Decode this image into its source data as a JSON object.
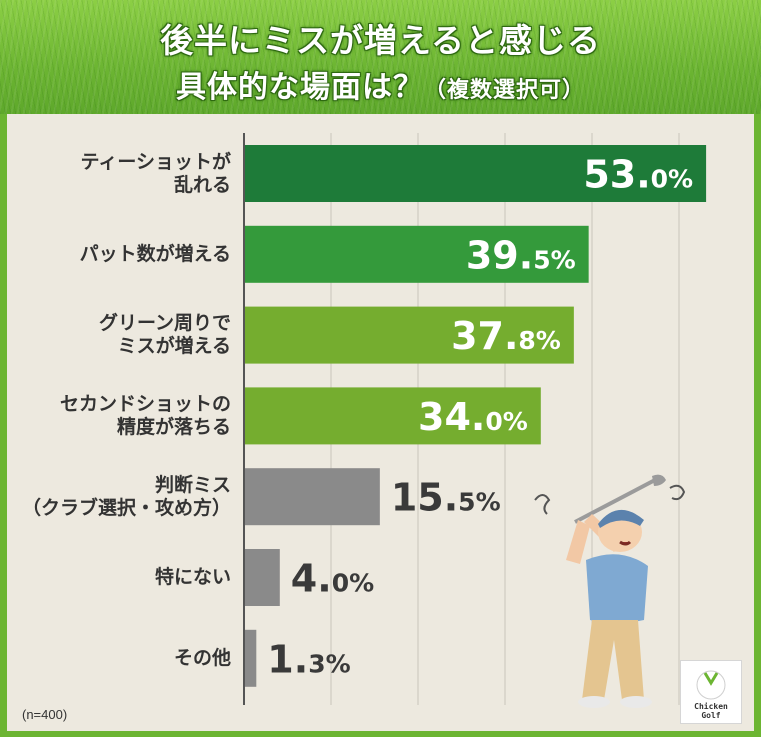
{
  "title_line1": "後半にミスが増えると感じる",
  "title_line2": "具体的な場面は？",
  "title_line2_suffix": "（複数選択可）",
  "note": "(n=400)",
  "logo": {
    "line1": "Chicken",
    "line2": "Golf"
  },
  "colors": {
    "dark_green": "#1e7b39",
    "mid_green": "#349a3b",
    "light_green": "#75ad2f",
    "gray": "#8a8a8a",
    "grass": "#6cb532"
  },
  "chart_data": {
    "type": "bar",
    "orientation": "horizontal",
    "categories": [
      [
        "ティーショットが",
        "乱れる"
      ],
      [
        "パット数が増える"
      ],
      [
        "グリーン周りで",
        "ミスが増える"
      ],
      [
        "セカンドショットの",
        "精度が落ちる"
      ],
      [
        "判断ミス",
        "（クラブ選択・攻め方）"
      ],
      [
        "特にない"
      ],
      [
        "その他"
      ]
    ],
    "values": [
      53.0,
      39.5,
      37.8,
      34.0,
      15.5,
      4.0,
      1.3
    ],
    "value_labels": [
      {
        "int": "53.",
        "dec": "0",
        "unit": "%"
      },
      {
        "int": "39.",
        "dec": "5",
        "unit": "%"
      },
      {
        "int": "37.",
        "dec": "8",
        "unit": "%"
      },
      {
        "int": "34.",
        "dec": "0",
        "unit": "%"
      },
      {
        "int": "15.",
        "dec": "5",
        "unit": "%"
      },
      {
        "int": "4.",
        "dec": "0",
        "unit": "%"
      },
      {
        "int": "1.",
        "dec": "3",
        "unit": "%"
      }
    ],
    "bar_colors": [
      "dark_green",
      "mid_green",
      "light_green",
      "light_green",
      "gray",
      "gray",
      "gray"
    ],
    "xlim": [
      0,
      60
    ],
    "grid": true
  }
}
